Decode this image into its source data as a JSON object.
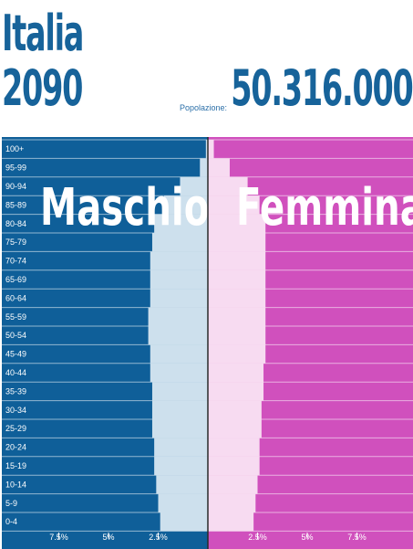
{
  "header": {
    "country": "Italia",
    "year": "2090",
    "population_label": "Popolazione:",
    "population_value": "50.316.000"
  },
  "colors": {
    "title": "#17639a",
    "male_bg": "#0f5f99",
    "female_bg": "#d050bd",
    "male_bar": "#cde0ed",
    "female_bar": "#f7dbf1"
  },
  "chart_data": {
    "type": "bar",
    "orientation": "horizontal-population-pyramid",
    "categories": [
      "0-4",
      "5-9",
      "10-14",
      "15-19",
      "20-24",
      "25-29",
      "30-34",
      "35-39",
      "40-44",
      "45-49",
      "50-54",
      "55-59",
      "60-64",
      "65-69",
      "70-74",
      "75-79",
      "80-84",
      "85-89",
      "90-94",
      "95-99",
      "100+"
    ],
    "series": [
      {
        "name": "Maschio",
        "values": [
          2.4,
          2.5,
          2.6,
          2.7,
          2.7,
          2.8,
          2.8,
          2.8,
          2.9,
          2.9,
          3.0,
          3.0,
          2.9,
          2.9,
          2.9,
          2.8,
          2.7,
          2.2,
          1.4,
          0.4,
          0.1
        ]
      },
      {
        "name": "Femmina",
        "values": [
          2.3,
          2.4,
          2.5,
          2.6,
          2.6,
          2.7,
          2.7,
          2.8,
          2.8,
          2.9,
          2.9,
          2.9,
          2.9,
          2.9,
          2.9,
          2.9,
          2.9,
          2.6,
          2.0,
          1.1,
          0.3
        ]
      }
    ],
    "x_ticks": [
      "7.5%",
      "5%",
      "2.5%",
      "2.5%",
      "5%",
      "7.5%"
    ],
    "xlim": [
      -10,
      10
    ],
    "xunit": "%",
    "grid": true
  }
}
